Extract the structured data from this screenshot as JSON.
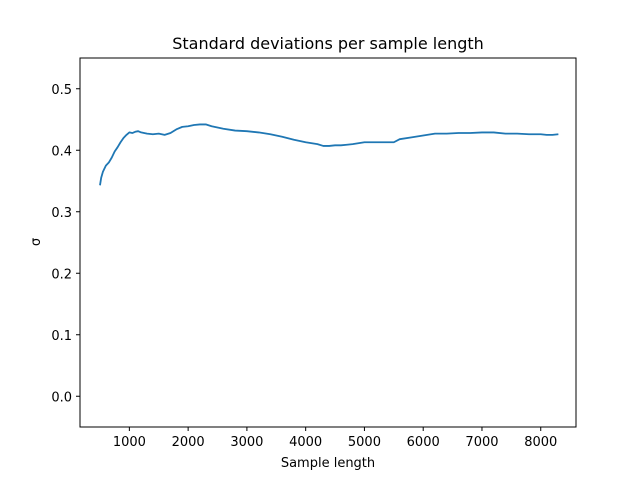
{
  "chart_data": {
    "type": "line",
    "title": "Standard deviations per sample length",
    "xlabel": "Sample length",
    "ylabel": "σ",
    "xlim": [
      160,
      8600
    ],
    "ylim": [
      -0.05,
      0.55
    ],
    "xticks": [
      1000,
      2000,
      3000,
      4000,
      5000,
      6000,
      7000,
      8000
    ],
    "xtick_labels": [
      "1000",
      "2000",
      "3000",
      "4000",
      "5000",
      "6000",
      "7000",
      "8000"
    ],
    "yticks": [
      0.0,
      0.1,
      0.2,
      0.3,
      0.4,
      0.5
    ],
    "ytick_labels": [
      "0.0",
      "0.1",
      "0.2",
      "0.3",
      "0.4",
      "0.5"
    ],
    "grid": false,
    "series": [
      {
        "color": "#1f77b4",
        "x": [
          500,
          520,
          550,
          600,
          650,
          700,
          750,
          800,
          850,
          900,
          950,
          1000,
          1050,
          1100,
          1150,
          1200,
          1300,
          1400,
          1500,
          1600,
          1700,
          1800,
          1900,
          2000,
          2100,
          2200,
          2300,
          2400,
          2500,
          2600,
          2800,
          3000,
          3200,
          3400,
          3600,
          3800,
          4000,
          4200,
          4300,
          4400,
          4500,
          4600,
          4700,
          4800,
          5000,
          5200,
          5400,
          5500,
          5600,
          5800,
          6000,
          6200,
          6400,
          6600,
          6800,
          7000,
          7200,
          7400,
          7600,
          7800,
          8000,
          8100,
          8200,
          8300
        ],
        "y": [
          0.343,
          0.355,
          0.365,
          0.375,
          0.38,
          0.388,
          0.398,
          0.405,
          0.413,
          0.42,
          0.425,
          0.429,
          0.428,
          0.43,
          0.431,
          0.429,
          0.427,
          0.426,
          0.427,
          0.425,
          0.428,
          0.434,
          0.438,
          0.439,
          0.441,
          0.442,
          0.442,
          0.439,
          0.437,
          0.435,
          0.432,
          0.431,
          0.429,
          0.426,
          0.422,
          0.417,
          0.413,
          0.41,
          0.407,
          0.407,
          0.408,
          0.408,
          0.409,
          0.41,
          0.413,
          0.413,
          0.413,
          0.413,
          0.418,
          0.421,
          0.424,
          0.427,
          0.427,
          0.428,
          0.428,
          0.429,
          0.429,
          0.427,
          0.427,
          0.426,
          0.426,
          0.425,
          0.425,
          0.426
        ]
      }
    ]
  }
}
